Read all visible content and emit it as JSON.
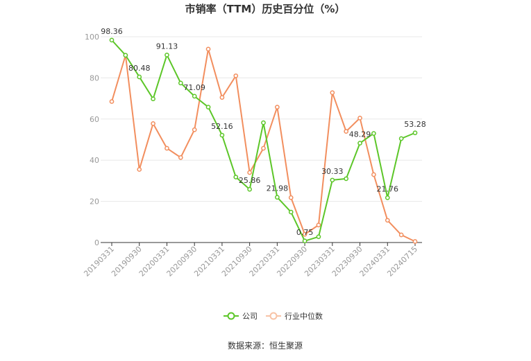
{
  "chart_data": {
    "type": "line",
    "title": "市销率（TTM）历史百分位（%）",
    "source": "数据来源：恒生聚源",
    "ylim": [
      0,
      100
    ],
    "yticks": [
      0,
      20,
      40,
      60,
      80,
      100
    ],
    "x_tick_labels": [
      "20190331",
      "20190930",
      "20200331",
      "20200930",
      "20210331",
      "20210930",
      "20220331",
      "20220930",
      "20230331",
      "20230930",
      "20240331",
      "20240715"
    ],
    "x": [
      "20190331",
      "20190630",
      "20190930",
      "20191231",
      "20200331",
      "20200630",
      "20200930",
      "20201231",
      "20210331",
      "20210630",
      "20210930",
      "20211231",
      "20220331",
      "20220630",
      "20220930",
      "20221231",
      "20230331",
      "20230630",
      "20230930",
      "20231231",
      "20240331",
      "20240630",
      "20240715"
    ],
    "legend_position": "bottom",
    "series": [
      {
        "name": "公司",
        "color": "#5cc628",
        "values": [
          98.36,
          91,
          80.48,
          69.8,
          91.13,
          77.5,
          71.09,
          65.8,
          52.16,
          31.8,
          25.86,
          58.2,
          21.98,
          14.8,
          0.75,
          2.8,
          30.33,
          31,
          48.29,
          53,
          21.76,
          50.5,
          53.28
        ],
        "labels": [
          "98.36",
          null,
          "80.48",
          null,
          "91.13",
          null,
          "71.09",
          null,
          "52.16",
          null,
          "25.86",
          null,
          "21.98",
          null,
          "0.75",
          null,
          "30.33",
          null,
          "48.29",
          null,
          "21.76",
          null,
          "53.28"
        ]
      },
      {
        "name": "行业中位数",
        "color": "#f28e5e",
        "values": [
          68.5,
          91,
          35.5,
          57.8,
          45.8,
          41.3,
          54.8,
          94,
          70.5,
          81,
          34,
          45.8,
          65.8,
          21.8,
          4,
          8.5,
          72.8,
          54,
          60.5,
          33,
          10.8,
          3.7,
          0.5
        ],
        "labels": []
      }
    ]
  }
}
